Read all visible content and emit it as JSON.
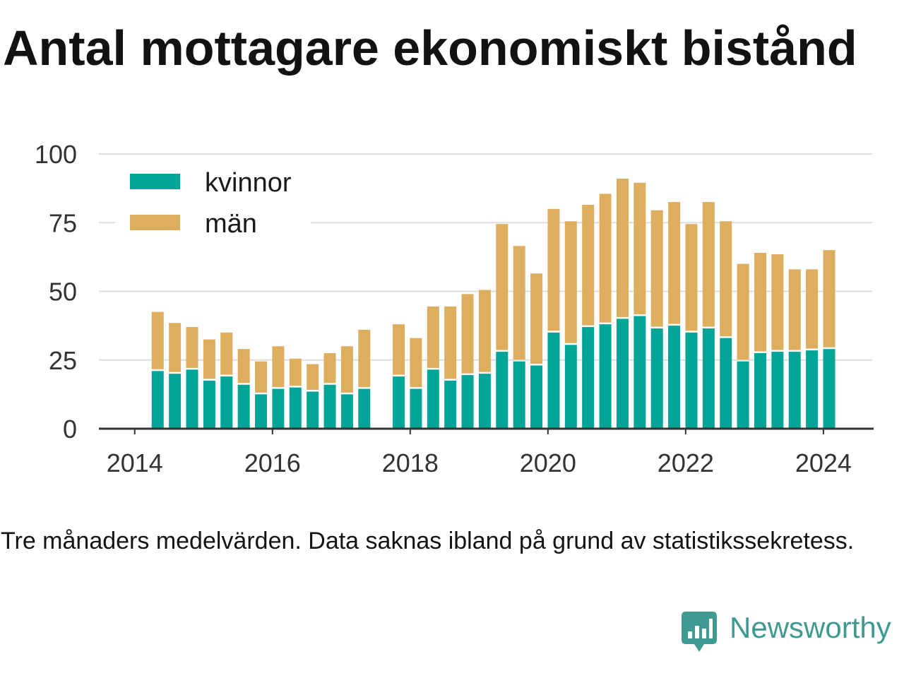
{
  "footnote": "Tre månaders medelvärden. Data saknas ibland på grund av statistikssekretess.",
  "brand": {
    "name": "Newsworthy",
    "icon": "newsworthy-logo-icon",
    "color": "#3f9b91"
  },
  "chart_data": {
    "type": "bar",
    "stacked": true,
    "title": "Antal mottagare ekonomiskt bistånd",
    "x": [
      "2014-05",
      "2014-08",
      "2014-11",
      "2015-02",
      "2015-05",
      "2015-08",
      "2015-11",
      "2016-02",
      "2016-05",
      "2016-08",
      "2016-11",
      "2017-02",
      "2017-05",
      "2017-08",
      "2017-11",
      "2018-02",
      "2018-05",
      "2018-08",
      "2018-11",
      "2019-02",
      "2019-05",
      "2019-08",
      "2019-11",
      "2020-02",
      "2020-05",
      "2020-08",
      "2020-11",
      "2021-02",
      "2021-05",
      "2021-08",
      "2021-11",
      "2022-02",
      "2022-05",
      "2022-08",
      "2022-11",
      "2023-02",
      "2023-05",
      "2023-08",
      "2023-11",
      "2024-02"
    ],
    "series": [
      {
        "name": "kvinnor",
        "color": "#00a597",
        "values": [
          21,
          20,
          21.5,
          17.5,
          19,
          16,
          12.5,
          14.5,
          15,
          13.5,
          16,
          12.5,
          14.5,
          null,
          19,
          14.5,
          21.5,
          17.5,
          19.5,
          20,
          28,
          24.5,
          23,
          35,
          30.5,
          37,
          38,
          40,
          41,
          36.5,
          37.5,
          35,
          36.5,
          33,
          24.5,
          27.5,
          28,
          28,
          28.5,
          29
        ]
      },
      {
        "name": "män",
        "color": "#dcae5e",
        "values": [
          21.5,
          18.5,
          15.5,
          15,
          16,
          13,
          12,
          15.5,
          10.5,
          10,
          11.5,
          17.5,
          21.5,
          null,
          19,
          18.5,
          23,
          27,
          29.5,
          30.5,
          46.5,
          42,
          33.5,
          45,
          45,
          44.5,
          47.5,
          51,
          48.5,
          43,
          45,
          39.5,
          46,
          42.5,
          35.5,
          36.5,
          35.5,
          30,
          29.5,
          36
        ]
      }
    ],
    "yticks": [
      0,
      25,
      50,
      75,
      100
    ],
    "xticks": [
      "2014",
      "2016",
      "2018",
      "2020",
      "2022",
      "2024"
    ],
    "ylim": [
      0,
      100
    ],
    "xlim": [
      "2013-07",
      "2024-10"
    ],
    "grid": true,
    "legend": "top-left"
  }
}
